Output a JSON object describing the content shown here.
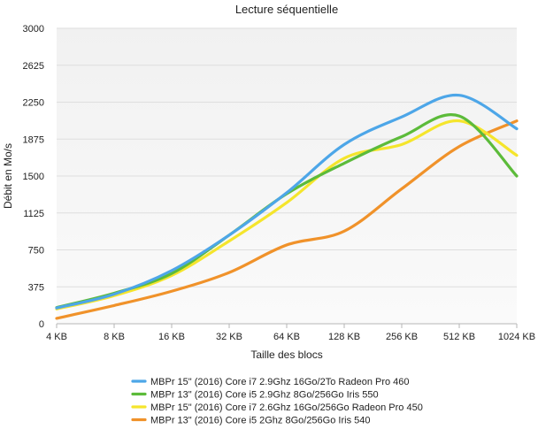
{
  "chart_data": {
    "type": "line",
    "title": "Lecture séquentielle",
    "xlabel": "Taille des blocs",
    "ylabel": "Débit en Mo/s",
    "categories": [
      "4 KB",
      "8 KB",
      "16 KB",
      "32 KB",
      "64 KB",
      "128 KB",
      "256 KB",
      "512 KB",
      "1024 KB"
    ],
    "ylim": [
      0,
      3000
    ],
    "yticks": [
      0,
      375,
      750,
      1125,
      1500,
      1875,
      2250,
      2625,
      3000
    ],
    "grid": "horizontal",
    "plot_background": "gradient light gray",
    "legend_position": "bottom",
    "series": [
      {
        "name": "MBPr 15\" (2016) Core i7 2.9Ghz 16Go/2To Radeon Pro 460",
        "color": "#4da6e8",
        "values": [
          160,
          300,
          540,
          900,
          1330,
          1820,
          2100,
          2320,
          1980
        ]
      },
      {
        "name": "MBPr 13\" (2016) Core i5 2.9Ghz 8Go/256Go Iris 550",
        "color": "#5cbb3a",
        "values": [
          165,
          310,
          510,
          900,
          1320,
          1630,
          1900,
          2110,
          1500
        ]
      },
      {
        "name": "MBPr 15\" (2016) Core i7 2.6Ghz 16Go/256Go Radeon Pro 450",
        "color": "#f5e52c",
        "values": [
          150,
          285,
          490,
          840,
          1230,
          1680,
          1820,
          2060,
          1710
        ]
      },
      {
        "name": "MBPr 13\" (2016) Core i5 2Ghz 8Go/256Go Iris 540",
        "color": "#f0922a",
        "values": [
          55,
          185,
          330,
          520,
          800,
          940,
          1370,
          1800,
          2060
        ]
      }
    ]
  }
}
